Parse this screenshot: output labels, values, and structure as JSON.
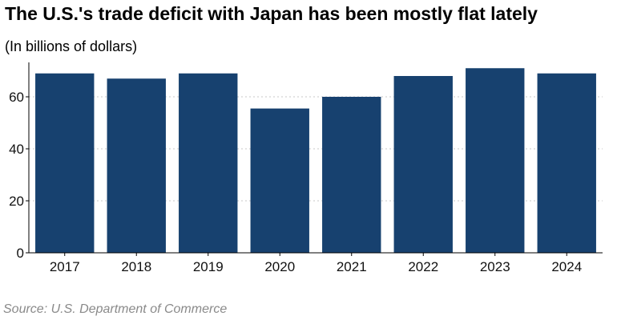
{
  "chart_data": {
    "type": "bar",
    "title": "The U.S.'s trade deficit with Japan has been mostly flat lately",
    "subtitle": "(In billions of dollars)",
    "source": "Source: U.S. Department of Commerce",
    "categories": [
      "2017",
      "2018",
      "2019",
      "2020",
      "2021",
      "2022",
      "2023",
      "2024"
    ],
    "values": [
      69,
      67,
      69,
      55.5,
      60,
      68,
      71,
      69
    ],
    "ylim": [
      0,
      75
    ],
    "yticks": [
      0,
      20,
      40,
      60
    ],
    "grid": true,
    "bar_color": "#17416f"
  }
}
